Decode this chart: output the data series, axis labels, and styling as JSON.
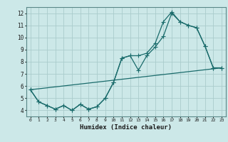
{
  "title": "",
  "xlabel": "Humidex (Indice chaleur)",
  "bg_color": "#cce8e8",
  "grid_color": "#aacccc",
  "line_color": "#1a6b6b",
  "xlim": [
    -0.5,
    23.5
  ],
  "ylim": [
    3.5,
    12.5
  ],
  "xticks": [
    0,
    1,
    2,
    3,
    4,
    5,
    6,
    7,
    8,
    9,
    10,
    11,
    12,
    13,
    14,
    15,
    16,
    17,
    18,
    19,
    20,
    21,
    22,
    23
  ],
  "yticks": [
    4,
    5,
    6,
    7,
    8,
    9,
    10,
    11,
    12
  ],
  "line1_x": [
    0,
    1,
    2,
    3,
    4,
    5,
    6,
    7,
    8,
    9,
    10,
    11,
    12,
    13,
    14,
    15,
    16,
    17,
    18,
    19,
    20,
    21,
    22,
    23
  ],
  "line1_y": [
    5.7,
    4.7,
    4.4,
    4.1,
    4.4,
    4.0,
    4.5,
    4.1,
    4.3,
    5.0,
    6.3,
    8.3,
    8.5,
    7.3,
    8.5,
    9.2,
    10.1,
    12.0,
    11.3,
    11.0,
    10.8,
    9.3,
    7.5,
    7.5
  ],
  "line2_x": [
    0,
    1,
    2,
    3,
    4,
    5,
    6,
    7,
    8,
    9,
    10,
    11,
    12,
    13,
    14,
    15,
    16,
    17,
    18,
    19,
    20,
    21,
    22,
    23
  ],
  "line2_y": [
    5.7,
    4.7,
    4.4,
    4.1,
    4.4,
    4.0,
    4.5,
    4.1,
    4.3,
    5.0,
    6.3,
    8.3,
    8.5,
    8.5,
    8.7,
    9.5,
    11.3,
    12.1,
    11.3,
    11.0,
    10.8,
    9.3,
    7.5,
    7.5
  ],
  "line3_x": [
    0,
    23
  ],
  "line3_y": [
    5.7,
    7.5
  ],
  "markersize": 2.5,
  "linewidth": 0.9
}
